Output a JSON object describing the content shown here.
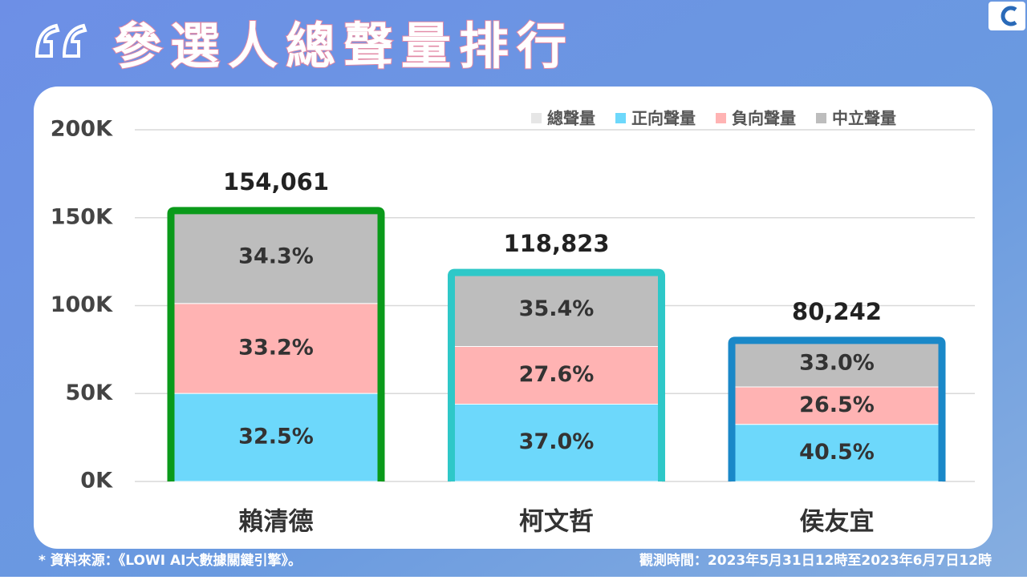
{
  "title": "參選人總聲量排行",
  "footnote": "* 資料來源：《LOWI AI大數據關鍵引擎》。",
  "observation_period": "觀測時間：2023年5月31日12時至2023年6月7日12時",
  "chart_data": {
    "type": "stacked_share_bar",
    "categories": [
      "賴清德",
      "柯文哲",
      "侯友宜"
    ],
    "series": [
      {
        "name": "總聲量",
        "color": "#e6e6e6",
        "values": [
          154061,
          118823,
          80242
        ],
        "value_labels": [
          "154,061",
          "118,823",
          "80,242"
        ],
        "outline_colors": [
          "#0a9a1a",
          "#2ec8c8",
          "#1a88c8"
        ]
      },
      {
        "name": "正向聲量",
        "color": "#6dd8fb",
        "values": [
          32.5,
          37.0,
          40.5
        ],
        "value_labels": [
          "32.5%",
          "37.0%",
          "40.5%"
        ]
      },
      {
        "name": "負向聲量",
        "color": "#ffb3b3",
        "values": [
          33.2,
          27.6,
          26.5
        ],
        "value_labels": [
          "33.2%",
          "27.6%",
          "26.5%"
        ]
      },
      {
        "name": "中立聲量",
        "color": "#bdbdbd",
        "values": [
          34.3,
          35.4,
          33.0
        ],
        "value_labels": [
          "34.3%",
          "35.4%",
          "33.0%"
        ]
      }
    ],
    "ylim": [
      0,
      200000
    ],
    "yticks": [
      {
        "value": 0,
        "label": "0K"
      },
      {
        "value": 50000,
        "label": "50K"
      },
      {
        "value": 100000,
        "label": "100K"
      },
      {
        "value": 150000,
        "label": "150K"
      },
      {
        "value": 200000,
        "label": "200K"
      }
    ],
    "grid": true,
    "legend": "top-right"
  }
}
